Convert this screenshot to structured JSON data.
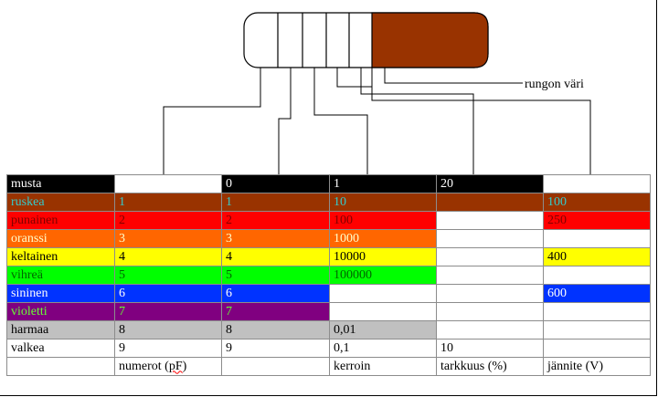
{
  "body_label": "rungon väri",
  "colors": {
    "musta": "#000000",
    "ruskea": "#993300",
    "punainen": "#ff0000",
    "oranssi": "#ff6600",
    "keltainen": "#ffff00",
    "vihrea": "#00ff00",
    "sininen": "#0033ff",
    "violetti": "#800080",
    "harmaa": "#c0c0c0",
    "valkea": "#ffffff",
    "cap_body": "#993300"
  },
  "table": {
    "rows": [
      {
        "name": "musta",
        "bg": "#000000",
        "fg": "#ffffff",
        "cells": [
          {
            "t": "musta",
            "bg": "#000000",
            "fg": "#ffffff"
          },
          {
            "t": "",
            "bg": "#ffffff",
            "fg": "#000000"
          },
          {
            "t": "0",
            "bg": "#000000",
            "fg": "#ffffff"
          },
          {
            "t": "1",
            "bg": "#000000",
            "fg": "#ffffff"
          },
          {
            "t": "20",
            "bg": "#000000",
            "fg": "#ffffff"
          },
          {
            "t": "",
            "bg": "#ffffff",
            "fg": "#000000"
          }
        ]
      },
      {
        "name": "ruskea",
        "cells": [
          {
            "t": "ruskea",
            "bg": "#993300",
            "fg": "#33cccc"
          },
          {
            "t": "1",
            "bg": "#993300",
            "fg": "#33cccc"
          },
          {
            "t": "1",
            "bg": "#993300",
            "fg": "#33cccc"
          },
          {
            "t": "10",
            "bg": "#993300",
            "fg": "#33cccc"
          },
          {
            "t": "",
            "bg": "#993300",
            "fg": "#33cccc"
          },
          {
            "t": "100",
            "bg": "#993300",
            "fg": "#33cccc"
          }
        ]
      },
      {
        "name": "punainen",
        "cells": [
          {
            "t": "punainen",
            "bg": "#ff0000",
            "fg": "#800000"
          },
          {
            "t": "2",
            "bg": "#ff0000",
            "fg": "#800000"
          },
          {
            "t": "2",
            "bg": "#ff0000",
            "fg": "#800000"
          },
          {
            "t": "100",
            "bg": "#ff0000",
            "fg": "#800000"
          },
          {
            "t": "",
            "bg": "#ffffff",
            "fg": "#000000"
          },
          {
            "t": "250",
            "bg": "#ff0000",
            "fg": "#800000"
          }
        ]
      },
      {
        "name": "oranssi",
        "cells": [
          {
            "t": "oranssi",
            "bg": "#ff6600",
            "fg": "#ffffcc"
          },
          {
            "t": "3",
            "bg": "#ff6600",
            "fg": "#ffffcc"
          },
          {
            "t": "3",
            "bg": "#ff6600",
            "fg": "#ffffcc"
          },
          {
            "t": "1000",
            "bg": "#ff6600",
            "fg": "#ffffcc"
          },
          {
            "t": "",
            "bg": "#ffffff",
            "fg": "#000000"
          },
          {
            "t": "",
            "bg": "#ffffff",
            "fg": "#000000"
          }
        ]
      },
      {
        "name": "keltainen",
        "cells": [
          {
            "t": "keltainen",
            "bg": "#ffff00",
            "fg": "#000000"
          },
          {
            "t": "4",
            "bg": "#ffff00",
            "fg": "#000000"
          },
          {
            "t": "4",
            "bg": "#ffff00",
            "fg": "#000000"
          },
          {
            "t": "10000",
            "bg": "#ffff00",
            "fg": "#000000"
          },
          {
            "t": "",
            "bg": "#ffffff",
            "fg": "#000000"
          },
          {
            "t": "400",
            "bg": "#ffff00",
            "fg": "#000000"
          }
        ]
      },
      {
        "name": "vihrea",
        "cells": [
          {
            "t": "vihreä",
            "bg": "#00ff00",
            "fg": "#006600"
          },
          {
            "t": "5",
            "bg": "#00ff00",
            "fg": "#006600"
          },
          {
            "t": "5",
            "bg": "#00ff00",
            "fg": "#006600"
          },
          {
            "t": "100000",
            "bg": "#00ff00",
            "fg": "#006600"
          },
          {
            "t": "",
            "bg": "#ffffff",
            "fg": "#000000"
          },
          {
            "t": "",
            "bg": "#ffffff",
            "fg": "#000000"
          }
        ]
      },
      {
        "name": "sininen",
        "cells": [
          {
            "t": "sininen",
            "bg": "#0033ff",
            "fg": "#ffffff"
          },
          {
            "t": "6",
            "bg": "#0033ff",
            "fg": "#ffffff"
          },
          {
            "t": "6",
            "bg": "#0033ff",
            "fg": "#ffffff"
          },
          {
            "t": "",
            "bg": "#ffffff",
            "fg": "#000000"
          },
          {
            "t": "",
            "bg": "#ffffff",
            "fg": "#000000"
          },
          {
            "t": "600",
            "bg": "#0033ff",
            "fg": "#ffffff"
          }
        ]
      },
      {
        "name": "violetti",
        "cells": [
          {
            "t": "violetti",
            "bg": "#800080",
            "fg": "#66ff33"
          },
          {
            "t": "7",
            "bg": "#800080",
            "fg": "#66ff33"
          },
          {
            "t": "7",
            "bg": "#800080",
            "fg": "#66ff33"
          },
          {
            "t": "",
            "bg": "#ffffff",
            "fg": "#000000"
          },
          {
            "t": "",
            "bg": "#ffffff",
            "fg": "#000000"
          },
          {
            "t": "",
            "bg": "#ffffff",
            "fg": "#000000"
          }
        ]
      },
      {
        "name": "harmaa",
        "cells": [
          {
            "t": "harmaa",
            "bg": "#c0c0c0",
            "fg": "#000000"
          },
          {
            "t": "8",
            "bg": "#c0c0c0",
            "fg": "#000000"
          },
          {
            "t": "8",
            "bg": "#c0c0c0",
            "fg": "#000000"
          },
          {
            "t": "0,01",
            "bg": "#c0c0c0",
            "fg": "#000000"
          },
          {
            "t": "",
            "bg": "#ffffff",
            "fg": "#000000"
          },
          {
            "t": "",
            "bg": "#ffffff",
            "fg": "#000000"
          }
        ]
      },
      {
        "name": "valkea",
        "cells": [
          {
            "t": "valkea",
            "bg": "#ffffff",
            "fg": "#000000"
          },
          {
            "t": "9",
            "bg": "#ffffff",
            "fg": "#000000"
          },
          {
            "t": "9",
            "bg": "#ffffff",
            "fg": "#000000"
          },
          {
            "t": "0,1",
            "bg": "#ffffff",
            "fg": "#000000"
          },
          {
            "t": "10",
            "bg": "#ffffff",
            "fg": "#000000"
          },
          {
            "t": "",
            "bg": "#ffffff",
            "fg": "#000000"
          }
        ]
      }
    ],
    "footer": [
      "",
      "numerot (pF)",
      "",
      "kerroin",
      "tarkkuus (%)",
      "jännite (V)"
    ]
  }
}
